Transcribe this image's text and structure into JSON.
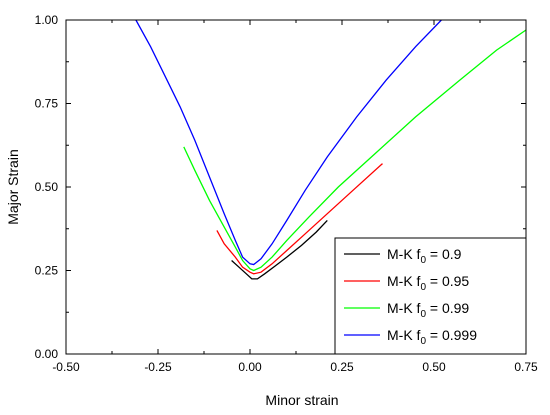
{
  "chart_data": {
    "type": "line",
    "title": "",
    "xlabel": "Minor strain",
    "ylabel": "Major Strain",
    "xlim": [
      -0.5,
      0.75
    ],
    "ylim": [
      0.0,
      1.0
    ],
    "xticks": [
      "-0.50",
      "-0.25",
      "0.00",
      "0.25",
      "0.50",
      "0.75"
    ],
    "yticks": [
      "0.00",
      "0.25",
      "0.50",
      "0.75",
      "1.00"
    ],
    "grid": false,
    "legend_position": "bottom-right",
    "series": [
      {
        "name": "M-K f0 = 0.9",
        "legend_prefix": "M-K f",
        "legend_subscript": "0",
        "legend_suffix": " = 0.9",
        "color": "#000000",
        "x": [
          -0.05,
          -0.03,
          -0.01,
          0.005,
          0.02,
          0.04,
          0.07,
          0.1,
          0.14,
          0.18,
          0.21
        ],
        "y": [
          0.28,
          0.26,
          0.24,
          0.225,
          0.225,
          0.24,
          0.265,
          0.29,
          0.325,
          0.365,
          0.4
        ]
      },
      {
        "name": "M-K f0 = 0.95",
        "legend_prefix": "M-K f",
        "legend_subscript": "0",
        "legend_suffix": " = 0.95",
        "color": "#ff0000",
        "x": [
          -0.09,
          -0.07,
          -0.04,
          -0.02,
          0.0,
          0.01,
          0.03,
          0.06,
          0.1,
          0.15,
          0.21,
          0.28,
          0.36
        ],
        "y": [
          0.37,
          0.33,
          0.29,
          0.26,
          0.245,
          0.24,
          0.245,
          0.27,
          0.31,
          0.36,
          0.42,
          0.49,
          0.57
        ]
      },
      {
        "name": "M-K f0 = 0.99",
        "legend_prefix": "M-K f",
        "legend_subscript": "0",
        "legend_suffix": " = 0.99",
        "color": "#00ff00",
        "x": [
          -0.18,
          -0.15,
          -0.11,
          -0.07,
          -0.04,
          -0.02,
          0.0,
          0.01,
          0.03,
          0.06,
          0.1,
          0.16,
          0.24,
          0.34,
          0.45,
          0.57,
          0.67,
          0.75
        ],
        "y": [
          0.62,
          0.55,
          0.46,
          0.38,
          0.32,
          0.28,
          0.255,
          0.25,
          0.26,
          0.29,
          0.34,
          0.41,
          0.5,
          0.6,
          0.71,
          0.82,
          0.91,
          0.97
        ]
      },
      {
        "name": "M-K f0 = 0.999",
        "legend_prefix": "M-K f",
        "legend_subscript": "0",
        "legend_suffix": " = 0.999",
        "color": "#0000ff",
        "x": [
          -0.31,
          -0.27,
          -0.23,
          -0.19,
          -0.15,
          -0.11,
          -0.07,
          -0.04,
          -0.02,
          0.0,
          0.01,
          0.03,
          0.06,
          0.1,
          0.15,
          0.21,
          0.29,
          0.37,
          0.45,
          0.52
        ],
        "y": [
          1.0,
          0.92,
          0.83,
          0.74,
          0.64,
          0.53,
          0.42,
          0.34,
          0.29,
          0.27,
          0.268,
          0.285,
          0.33,
          0.4,
          0.49,
          0.59,
          0.71,
          0.82,
          0.92,
          1.0
        ]
      }
    ]
  }
}
